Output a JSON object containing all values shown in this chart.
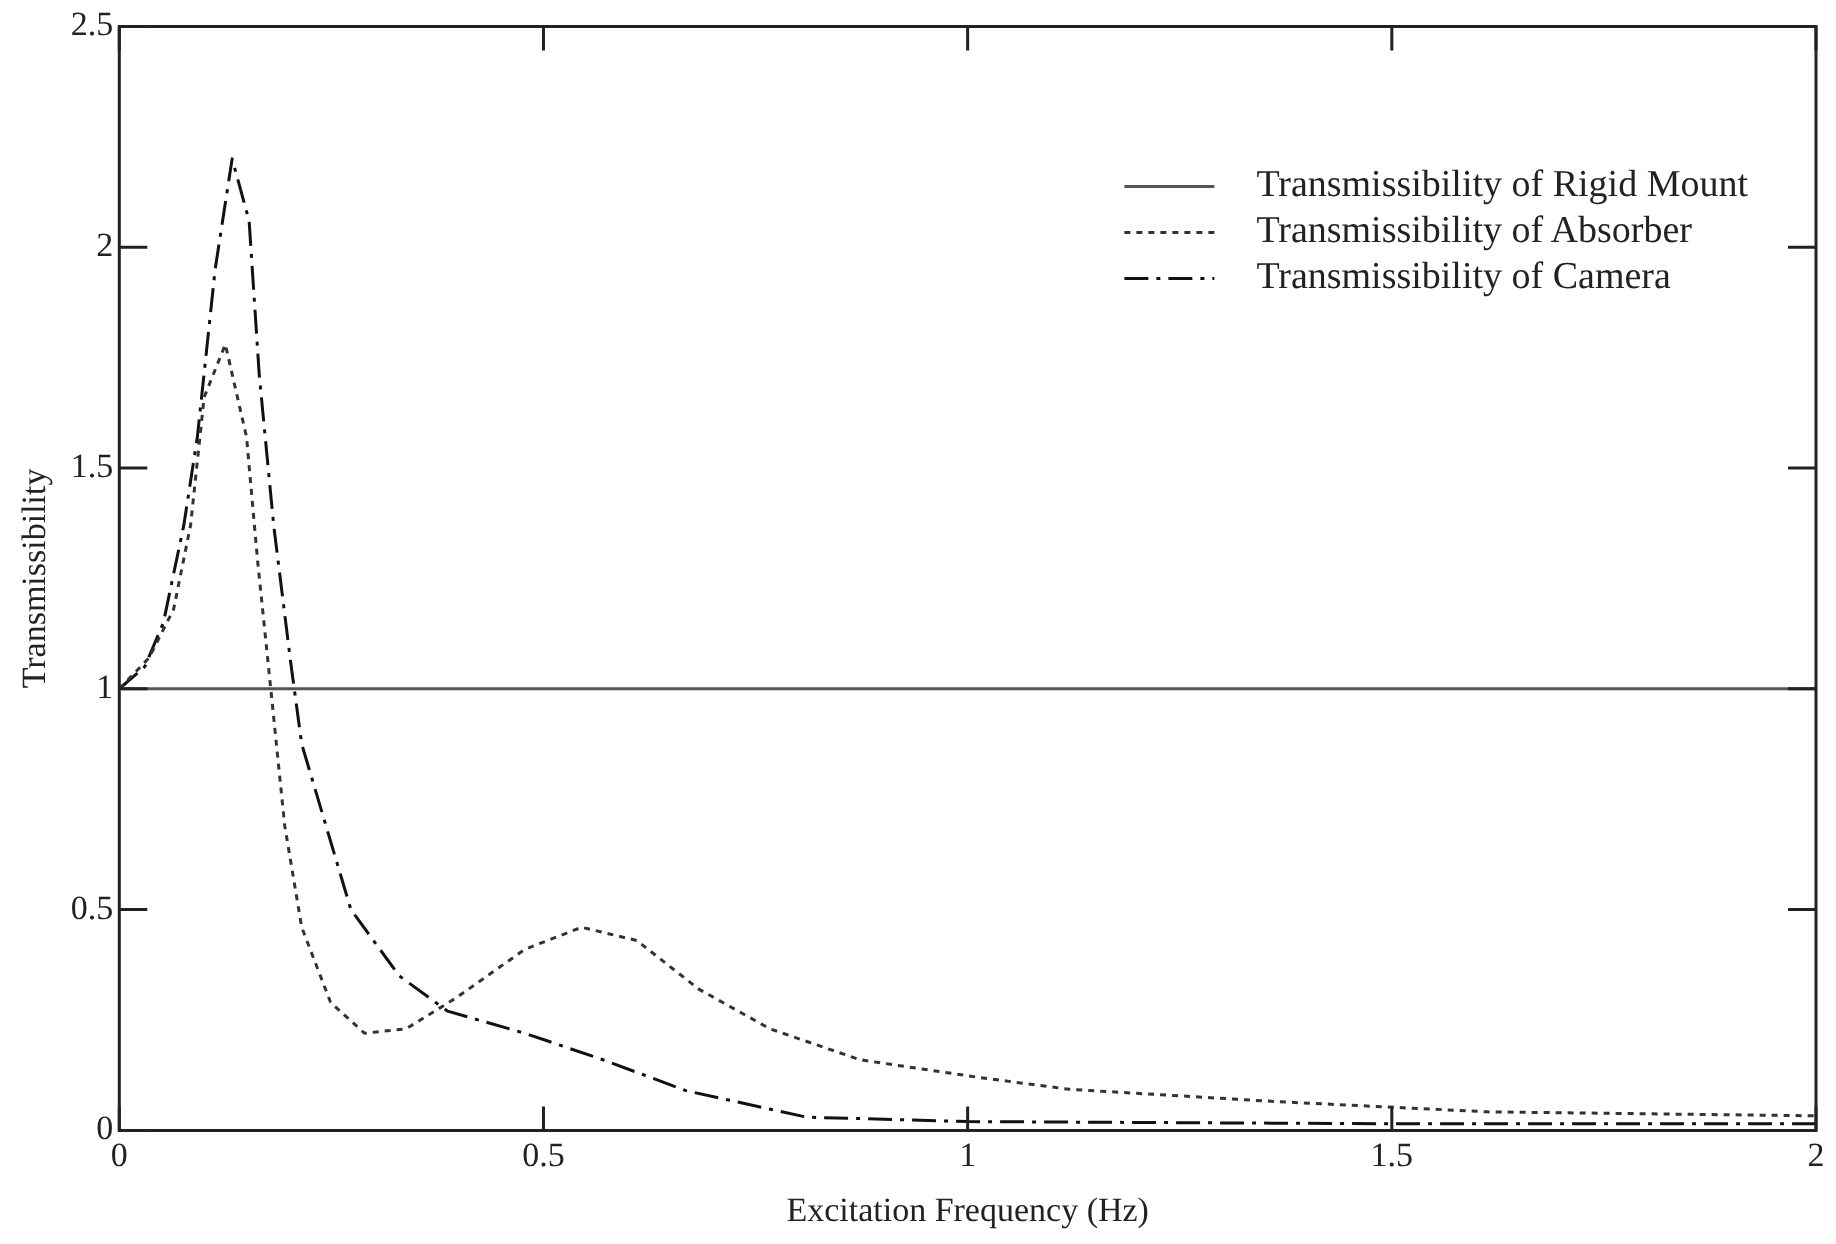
{
  "chart_data": {
    "type": "line",
    "xlabel": "Excitation Frequency (Hz)",
    "ylabel": "Transmissibility",
    "xlim": [
      0,
      2
    ],
    "xticks": [
      0,
      0.5,
      1,
      1.5,
      2
    ],
    "ylim": [
      0,
      2.5
    ],
    "yticks": [
      0,
      0.5,
      1,
      1.5,
      2,
      2.5
    ],
    "grid": false,
    "legend": "top right",
    "marker": "none",
    "series": [
      {
        "name": "Transmissibility of Rigid Mount",
        "color": "#555555",
        "line_style": "solid",
        "x": [
          0,
          2
        ],
        "values": [
          1,
          1
        ]
      },
      {
        "name": "Transmissibility of Absorber",
        "color": "#333333",
        "line_style": "dotted",
        "x": [
          0,
          0.035,
          0.064,
          0.084,
          0.1,
          0.125,
          0.15,
          0.163,
          0.178,
          0.195,
          0.215,
          0.249,
          0.289,
          0.338,
          0.397,
          0.478,
          0.545,
          0.61,
          0.683,
          0.767,
          0.873,
          1.013,
          1.12,
          1.366,
          1.613,
          2
        ],
        "values": [
          1,
          1.07,
          1.18,
          1.37,
          1.66,
          1.78,
          1.57,
          1.29,
          1.01,
          0.69,
          0.46,
          0.29,
          0.22,
          0.23,
          0.3,
          0.41,
          0.46,
          0.43,
          0.32,
          0.23,
          0.16,
          0.12,
          0.093,
          0.065,
          0.042,
          0.033
        ]
      },
      {
        "name": "Transmissibility of Camera",
        "color": "#111111",
        "line_style": "dashed",
        "x": [
          0,
          0.03,
          0.052,
          0.076,
          0.092,
          0.113,
          0.133,
          0.153,
          0.165,
          0.182,
          0.202,
          0.215,
          0.273,
          0.33,
          0.387,
          0.478,
          0.57,
          0.668,
          0.81,
          1,
          1.5,
          2
        ],
        "values": [
          1,
          1.05,
          1.15,
          1.37,
          1.57,
          1.95,
          2.2,
          2.06,
          1.71,
          1.37,
          1.06,
          0.875,
          0.5,
          0.35,
          0.27,
          0.22,
          0.16,
          0.09,
          0.03,
          0.02,
          0.015,
          0.015
        ]
      }
    ]
  }
}
